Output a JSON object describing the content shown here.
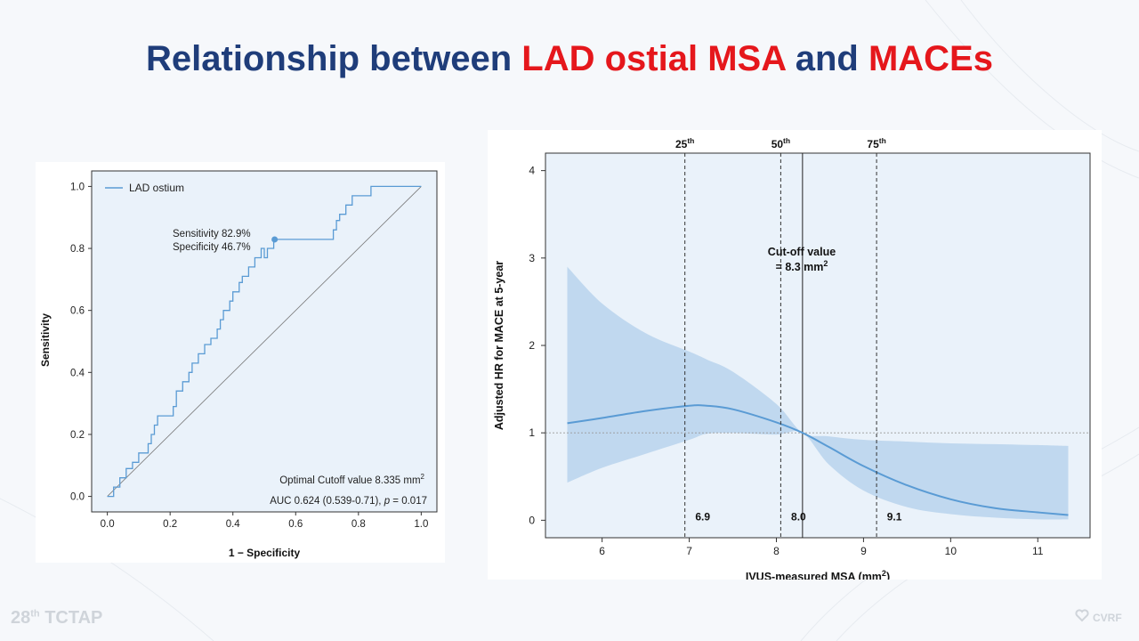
{
  "slide": {
    "title_part1": "Relationship between ",
    "title_part2": "LAD ostial MSA",
    "title_part3": " and ",
    "title_part4": "MACEs",
    "footer_left_number": "28",
    "footer_left_sup": "th",
    "footer_left_text": "TCTAP",
    "footer_right_text": "CVRF",
    "colors": {
      "title_blue": "#1f3d7a",
      "title_red": "#e5171c",
      "line_blue": "#5a9bd4",
      "band_blue": "#b9d4ec",
      "plot_bg": "#eaf2fa"
    }
  },
  "chart_data": [
    {
      "type": "line",
      "xlabel": "1 − Specificity",
      "ylabel": "Sensitivity",
      "xlim": [
        -0.05,
        1.05
      ],
      "ylim": [
        -0.05,
        1.05
      ],
      "xticks": [
        "0.0",
        "0.2",
        "0.4",
        "0.6",
        "0.8",
        "1.0"
      ],
      "yticks": [
        "0.0",
        "0.2",
        "0.4",
        "0.6",
        "0.8",
        "1.0"
      ],
      "legend": "top-left",
      "series": [
        {
          "name": "LAD ostium",
          "x": [
            0,
            0.02,
            0.02,
            0.04,
            0.04,
            0.06,
            0.06,
            0.08,
            0.08,
            0.1,
            0.1,
            0.13,
            0.13,
            0.14,
            0.14,
            0.15,
            0.15,
            0.16,
            0.16,
            0.21,
            0.21,
            0.22,
            0.22,
            0.24,
            0.24,
            0.26,
            0.26,
            0.27,
            0.27,
            0.29,
            0.29,
            0.31,
            0.31,
            0.33,
            0.33,
            0.35,
            0.35,
            0.36,
            0.36,
            0.37,
            0.37,
            0.39,
            0.39,
            0.4,
            0.4,
            0.42,
            0.42,
            0.43,
            0.43,
            0.45,
            0.45,
            0.47,
            0.47,
            0.49,
            0.49,
            0.5,
            0.5,
            0.51,
            0.51,
            0.53,
            0.53,
            0.72,
            0.72,
            0.73,
            0.73,
            0.74,
            0.74,
            0.76,
            0.76,
            0.78,
            0.78,
            0.84,
            0.84,
            0.86,
            0.86,
            1.0
          ],
          "y": [
            0,
            0,
            0.03,
            0.03,
            0.06,
            0.06,
            0.09,
            0.09,
            0.11,
            0.11,
            0.14,
            0.14,
            0.17,
            0.17,
            0.2,
            0.2,
            0.23,
            0.23,
            0.26,
            0.26,
            0.29,
            0.29,
            0.34,
            0.34,
            0.37,
            0.37,
            0.4,
            0.4,
            0.43,
            0.43,
            0.46,
            0.46,
            0.49,
            0.49,
            0.51,
            0.51,
            0.54,
            0.54,
            0.57,
            0.57,
            0.6,
            0.6,
            0.63,
            0.63,
            0.66,
            0.66,
            0.69,
            0.69,
            0.71,
            0.71,
            0.74,
            0.74,
            0.77,
            0.77,
            0.8,
            0.8,
            0.77,
            0.77,
            0.8,
            0.8,
            0.829,
            0.829,
            0.86,
            0.86,
            0.89,
            0.89,
            0.91,
            0.91,
            0.94,
            0.94,
            0.97,
            0.97,
            1.0,
            1.0,
            1.0,
            1.0
          ]
        },
        {
          "name": "",
          "x": [
            0,
            1
          ],
          "y": [
            0,
            1
          ]
        }
      ],
      "highlight_point": {
        "x": 0.533,
        "y": 0.829
      },
      "annotations": {
        "sensitivity": "Sensitivity 82.9%",
        "specificity": "Specificity 46.7%",
        "cutoff_prefix": "Optimal Cutoff value 8.335 mm",
        "cutoff_sup": "2",
        "auc_prefix": "AUC 0.624 (0.539-0.71), ",
        "auc_p": "p",
        "auc_suffix": " = 0.017"
      }
    },
    {
      "type": "line",
      "xlabel_prefix": "IVUS-measured MSA (mm",
      "xlabel_sup": "2",
      "xlabel_suffix": ")",
      "ylabel": "Adjusted HR for MACE at 5-year",
      "xlim": [
        5.35,
        11.6
      ],
      "ylim": [
        -0.2,
        4.2
      ],
      "xticks": [
        "6",
        "7",
        "8",
        "9",
        "10",
        "11"
      ],
      "yticks": [
        "0",
        "1",
        "2",
        "3",
        "4"
      ],
      "series": [
        {
          "name": "HR",
          "x": [
            5.6,
            6.0,
            6.5,
            7.0,
            7.2,
            7.5,
            8.0,
            8.3,
            8.6,
            9.0,
            9.5,
            10.0,
            10.5,
            11.0,
            11.35
          ],
          "y": [
            1.11,
            1.17,
            1.25,
            1.31,
            1.31,
            1.27,
            1.12,
            1.0,
            0.84,
            0.62,
            0.4,
            0.24,
            0.14,
            0.09,
            0.06
          ],
          "lower": [
            0.43,
            0.6,
            0.76,
            0.92,
            0.99,
            1.0,
            0.98,
            1.0,
            0.64,
            0.34,
            0.15,
            0.07,
            0.03,
            0.01,
            0.01
          ],
          "upper": [
            2.9,
            2.48,
            2.14,
            1.93,
            1.84,
            1.7,
            1.33,
            1.0,
            0.96,
            0.92,
            0.9,
            0.88,
            0.87,
            0.86,
            0.85
          ]
        }
      ],
      "reference_line_y": 1,
      "cutoff_x": 8.3,
      "percentiles": [
        {
          "x": 6.95,
          "label": "25",
          "sup": "th",
          "value": "6.9"
        },
        {
          "x": 8.05,
          "label": "50",
          "sup": "th",
          "value": "8.0"
        },
        {
          "x": 9.15,
          "label": "75",
          "sup": "th",
          "value": "9.1"
        }
      ],
      "cutoff_label_line1": "Cut-off value",
      "cutoff_label_line2_prefix": "= 8.3 mm",
      "cutoff_label_line2_sup": "2"
    }
  ]
}
